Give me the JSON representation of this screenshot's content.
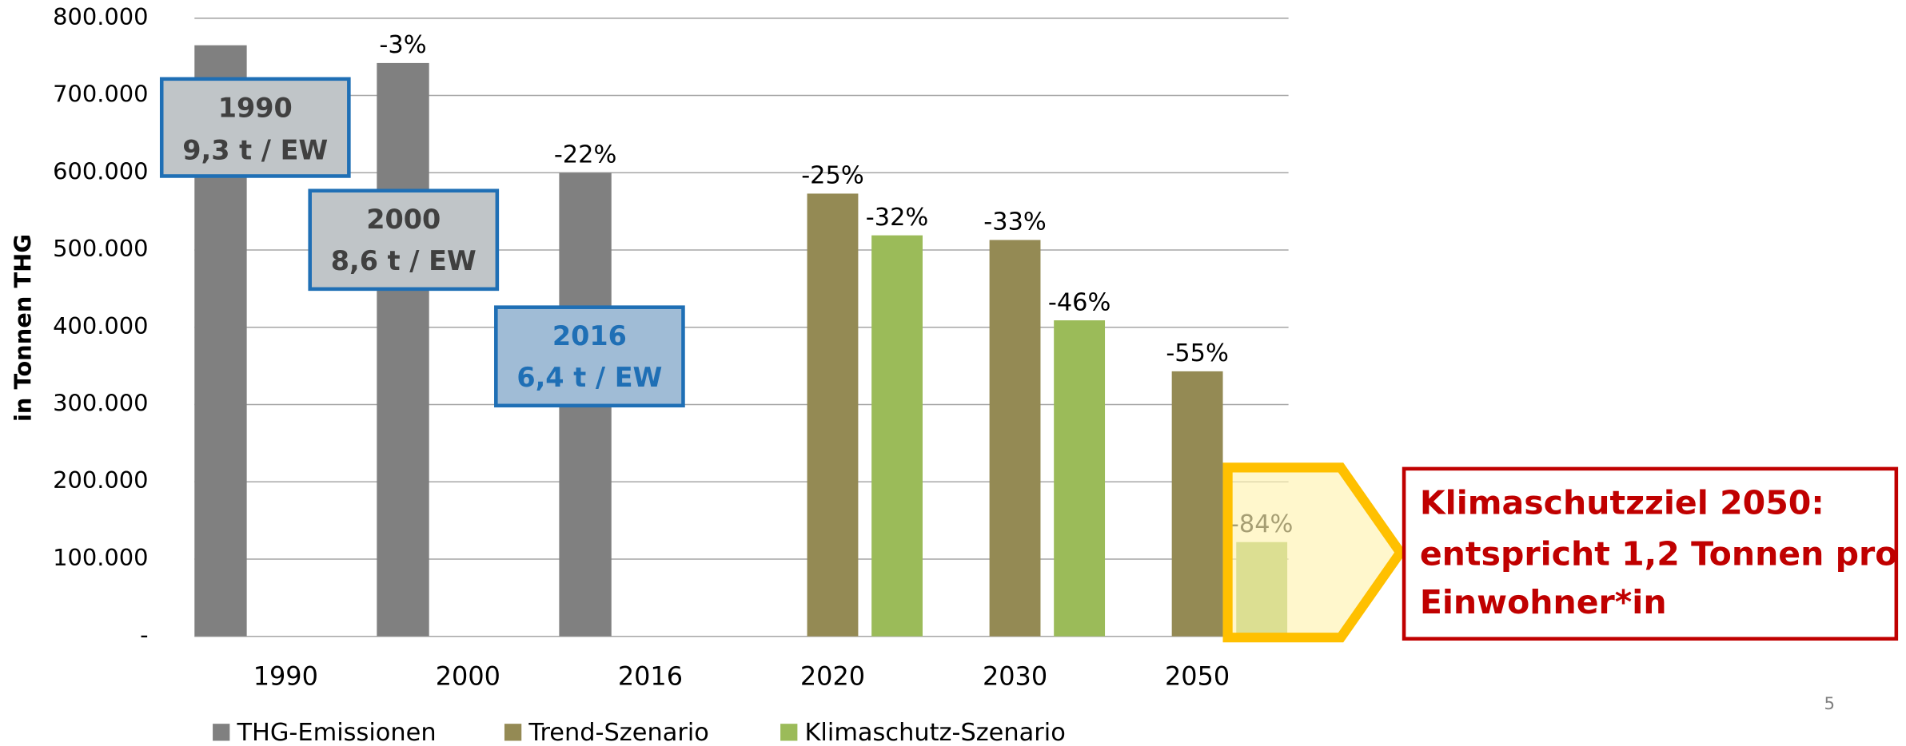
{
  "chart_data": {
    "type": "bar",
    "y_axis_label": "in Tonnen THG",
    "categories": [
      "1990",
      "2000",
      "2016",
      "2020",
      "2030",
      "2050"
    ],
    "series": [
      {
        "name": "THG-Emissionen",
        "color": "#808080",
        "values": [
          765000,
          742000,
          600000,
          null,
          null,
          null
        ],
        "labels": [
          null,
          "-3%",
          "-22%",
          null,
          null,
          null
        ]
      },
      {
        "name": "Trend-Szenario",
        "color": "#948a54",
        "values": [
          null,
          null,
          null,
          573000,
          513000,
          343000
        ],
        "labels": [
          null,
          null,
          null,
          "-25%",
          "-33%",
          "-55%"
        ]
      },
      {
        "name": "Klimaschutz-Szenario",
        "color": "#9bbb59",
        "values": [
          null,
          null,
          null,
          519000,
          409000,
          122000
        ],
        "labels": [
          null,
          null,
          null,
          "-32%",
          "-46%",
          "-84%"
        ]
      }
    ],
    "ylim": [
      0,
      800000
    ],
    "yticks": [
      {
        "value": 0,
        "label": "-"
      },
      {
        "value": 100000,
        "label": "100.000"
      },
      {
        "value": 200000,
        "label": "200.000"
      },
      {
        "value": 300000,
        "label": "300.000"
      },
      {
        "value": 400000,
        "label": "400.000"
      },
      {
        "value": 500000,
        "label": "500.000"
      },
      {
        "value": 600000,
        "label": "600.000"
      },
      {
        "value": 700000,
        "label": "700.000"
      },
      {
        "value": 800000,
        "label": "800.000"
      }
    ],
    "grid": true,
    "boxes": [
      {
        "year": "1990",
        "text": "9,3 t / EW"
      },
      {
        "year": "2000",
        "text": "8,6 t / EW"
      },
      {
        "year": "2016",
        "text": "6,4 t / EW"
      }
    ],
    "callout": [
      "Klimaschutzziel 2050:",
      "entspricht 1,2 Tonnen pro",
      "Einwohner*in"
    ],
    "page_number": "5"
  }
}
